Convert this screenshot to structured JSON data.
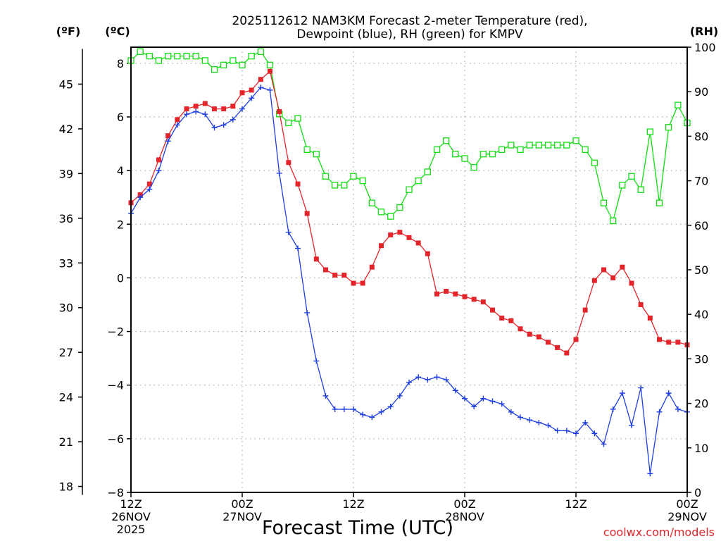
{
  "chart_data": {
    "type": "line",
    "title_line1": "2025112612 NAM3KM Forecast 2-meter Temperature (red),",
    "title_line2": "Dewpoint (blue), RH (green) for KMPV",
    "xlabel": "Forecast Time (UTC)",
    "credit": "coolwx.com/models",
    "unit_f": "(ºF)",
    "unit_c": "(ºC)",
    "unit_rh": "(RH)",
    "x_range_hours": [
      0,
      60
    ],
    "celsius_axis": {
      "range": [
        -8.0,
        8.6
      ],
      "ticks": [
        "8",
        "6",
        "4",
        "2",
        "0",
        "−2",
        "−4",
        "−6",
        "−8"
      ],
      "values": [
        8,
        6,
        4,
        2,
        0,
        -2,
        -4,
        -6,
        -8
      ]
    },
    "fahrenheit_axis": {
      "ticks": [
        "45",
        "42",
        "39",
        "36",
        "33",
        "30",
        "27",
        "24",
        "21",
        "18"
      ],
      "values": [
        45,
        42,
        39,
        36,
        33,
        30,
        27,
        24,
        21,
        18
      ]
    },
    "rh_axis": {
      "range": [
        0,
        100
      ],
      "ticks": [
        "100",
        "90",
        "80",
        "70",
        "60",
        "50",
        "40",
        "30",
        "20",
        "10",
        "0"
      ],
      "values": [
        100,
        90,
        80,
        70,
        60,
        50,
        40,
        30,
        20,
        10,
        0
      ]
    },
    "x_ticks": [
      {
        "hour": 0,
        "line1": "12Z",
        "line2": "26NOV",
        "line3": "2025"
      },
      {
        "hour": 12,
        "line1": "00Z",
        "line2": "27NOV",
        "line3": ""
      },
      {
        "hour": 24,
        "line1": "12Z",
        "line2": "",
        "line3": ""
      },
      {
        "hour": 36,
        "line1": "00Z",
        "line2": "28NOV",
        "line3": ""
      },
      {
        "hour": 48,
        "line1": "12Z",
        "line2": "",
        "line3": ""
      },
      {
        "hour": 60,
        "line1": "00Z",
        "line2": "29NOV",
        "line3": ""
      }
    ],
    "temperature": {
      "name": "Temperature",
      "color": "#e3252b",
      "unit": "C",
      "x": [
        0,
        1,
        2,
        3,
        4,
        5,
        6,
        7,
        8,
        9,
        10,
        11,
        12,
        13,
        14,
        15,
        16,
        17,
        18,
        19,
        20,
        21,
        22,
        23,
        24,
        25,
        26,
        27,
        28,
        29,
        30,
        31,
        32,
        33,
        34,
        35,
        36,
        37,
        38,
        39,
        40,
        41,
        42,
        43,
        44,
        45,
        46,
        47,
        48,
        49,
        50,
        51,
        52,
        53,
        54,
        55,
        56,
        57,
        58,
        59,
        60
      ],
      "values": [
        2.8,
        3.1,
        3.5,
        4.4,
        5.3,
        5.9,
        6.3,
        6.4,
        6.5,
        6.3,
        6.3,
        6.4,
        6.9,
        7.0,
        7.4,
        7.7,
        6.2,
        4.3,
        3.5,
        2.4,
        0.7,
        0.3,
        0.1,
        0.1,
        -0.2,
        -0.2,
        0.4,
        1.2,
        1.6,
        1.7,
        1.5,
        1.3,
        0.9,
        -0.6,
        -0.5,
        -0.6,
        -0.7,
        -0.8,
        -0.9,
        -1.2,
        -1.5,
        -1.6,
        -1.9,
        -2.1,
        -2.2,
        -2.4,
        -2.6,
        -2.8,
        -2.3,
        -1.2,
        -0.1,
        0.3,
        0.0,
        0.4,
        -0.2,
        -1.0,
        -1.5,
        -2.3,
        -2.4,
        -2.4,
        -2.5
      ]
    },
    "dewpoint": {
      "name": "Dewpoint",
      "color": "#1f3fe0",
      "unit": "C",
      "x": [
        0,
        1,
        2,
        3,
        4,
        5,
        6,
        7,
        8,
        9,
        10,
        11,
        12,
        13,
        14,
        15,
        16,
        17,
        18,
        19,
        20,
        21,
        22,
        23,
        24,
        25,
        26,
        27,
        28,
        29,
        30,
        31,
        32,
        33,
        34,
        35,
        36,
        37,
        38,
        39,
        40,
        41,
        42,
        43,
        44,
        45,
        46,
        47,
        48,
        49,
        50,
        51,
        52,
        53,
        54,
        55,
        56,
        57,
        58,
        59,
        60
      ],
      "values": [
        2.4,
        3.0,
        3.3,
        4.0,
        5.1,
        5.7,
        6.1,
        6.2,
        6.1,
        5.6,
        5.7,
        5.9,
        6.3,
        6.7,
        7.1,
        7.0,
        3.9,
        1.7,
        1.1,
        -1.3,
        -3.1,
        -4.4,
        -4.9,
        -4.9,
        -4.9,
        -5.1,
        -5.2,
        -5.0,
        -4.8,
        -4.4,
        -3.9,
        -3.7,
        -3.8,
        -3.7,
        -3.8,
        -4.2,
        -4.5,
        -4.8,
        -4.5,
        -4.6,
        -4.7,
        -5.0,
        -5.2,
        -5.3,
        -5.4,
        -5.5,
        -5.7,
        -5.7,
        -5.8,
        -5.4,
        -5.8,
        -6.2,
        -4.9,
        -4.3,
        -5.5,
        -4.1,
        -7.3,
        -5.0,
        -4.3,
        -4.9,
        -5.0
      ]
    },
    "rh": {
      "name": "RH",
      "color": "#12dc12",
      "unit": "%",
      "x": [
        0,
        1,
        2,
        3,
        4,
        5,
        6,
        7,
        8,
        9,
        10,
        11,
        12,
        13,
        14,
        15,
        16,
        17,
        18,
        19,
        20,
        21,
        22,
        23,
        24,
        25,
        26,
        27,
        28,
        29,
        30,
        31,
        32,
        33,
        34,
        35,
        36,
        37,
        38,
        39,
        40,
        41,
        42,
        43,
        44,
        45,
        46,
        47,
        48,
        49,
        50,
        51,
        52,
        53,
        54,
        55,
        56,
        57,
        58,
        59,
        60
      ],
      "values": [
        97,
        99,
        98,
        97,
        98,
        98,
        98,
        98,
        97,
        95,
        96,
        97,
        96,
        98,
        99,
        96,
        85,
        83,
        84,
        77,
        76,
        71,
        69,
        69,
        71,
        70,
        65,
        63,
        62,
        64,
        68,
        70,
        72,
        77,
        79,
        76,
        75,
        73,
        76,
        76,
        77,
        78,
        77,
        78,
        78,
        78,
        78,
        78,
        79,
        77,
        74,
        65,
        61,
        69,
        71,
        68,
        81,
        65,
        82,
        87,
        83
      ]
    }
  }
}
